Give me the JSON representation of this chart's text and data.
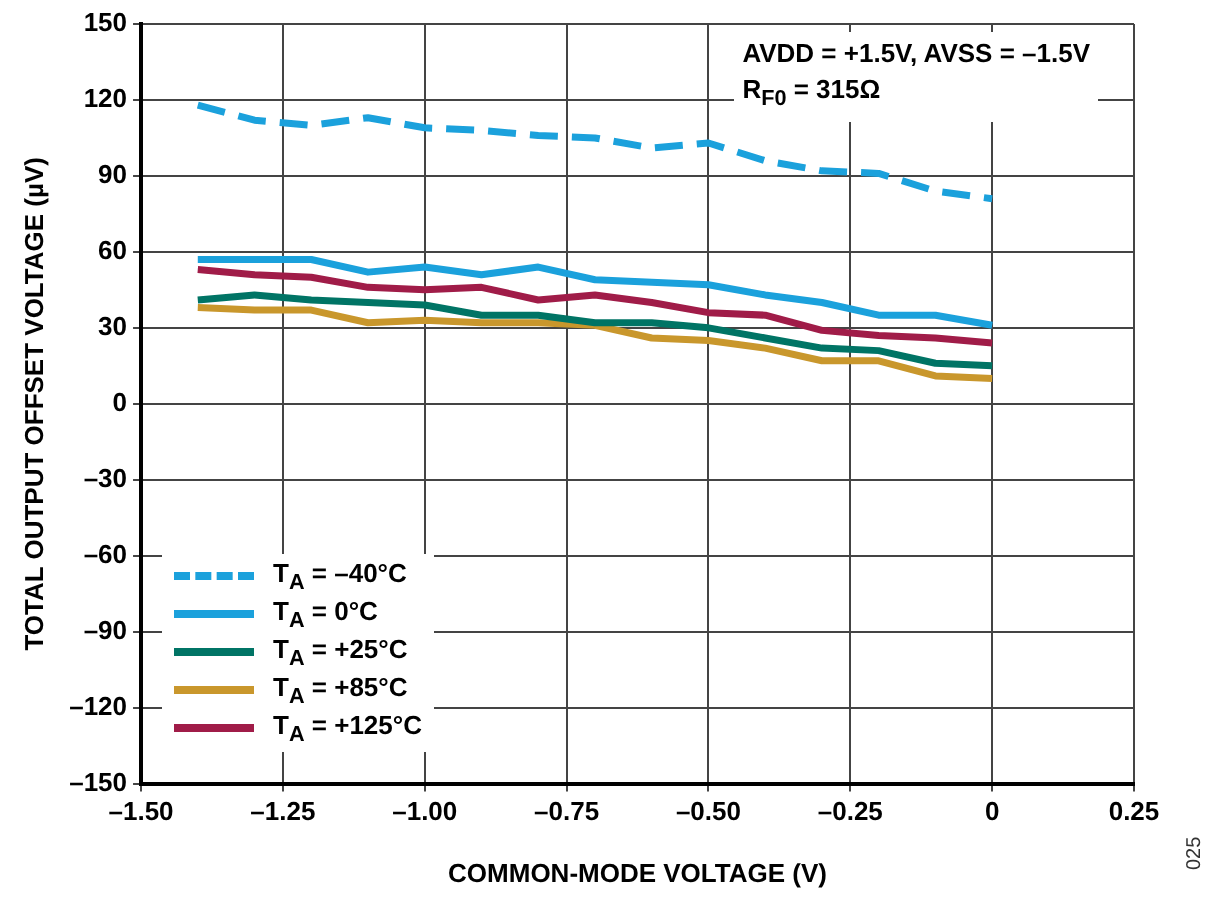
{
  "chart_data": {
    "type": "line",
    "xlabel": "COMMON-MODE VOLTAGE (V)",
    "ylabel": "TOTAL OUTPUT OFFSET VOLTAGE (µV)",
    "annotations": [
      "AVDD = +1.5V, AVSS = –1.5V\nR$_{F0}$ = 315Ω",
      "025"
    ],
    "x": [
      -1.4,
      -1.3,
      -1.2,
      -1.1,
      -1.0,
      -0.9,
      -0.8,
      -0.7,
      -0.6,
      -0.5,
      -0.4,
      -0.3,
      -0.2,
      -0.1,
      0
    ],
    "series": [
      {
        "name": "T$_{A}$ = –40°C",
        "color": "#1ba1dc",
        "line_style": "dashed",
        "values": [
          118,
          112,
          110,
          113,
          109,
          108,
          106,
          105,
          101,
          103,
          96,
          92,
          91,
          84,
          81
        ]
      },
      {
        "name": "T$_{A}$ = 0°C",
        "color": "#1ba1dc",
        "values": [
          57,
          57,
          57,
          52,
          54,
          51,
          54,
          49,
          48,
          47,
          43,
          40,
          35,
          35,
          31
        ]
      },
      {
        "name": "T$_{A}$ = +25°C",
        "color": "#007465",
        "values": [
          41,
          43,
          41,
          40,
          39,
          35,
          35,
          32,
          32,
          30,
          26,
          22,
          21,
          16,
          15
        ]
      },
      {
        "name": "T$_{A}$ = +85°C",
        "color": "#c9972c",
        "values": [
          38,
          37,
          37,
          32,
          33,
          32,
          32,
          31,
          26,
          25,
          22,
          17,
          17,
          11,
          10
        ]
      },
      {
        "name": "T$_{A}$ = +125°C",
        "color": "#a01c48",
        "values": [
          53,
          51,
          50,
          46,
          45,
          46,
          41,
          43,
          40,
          36,
          35,
          29,
          27,
          26,
          24
        ]
      }
    ],
    "xlim": [
      -1.5,
      0.25
    ],
    "xticks": [
      {
        "value": -1.5,
        "label": "–1.50"
      },
      {
        "value": -1.25,
        "label": "–1.25"
      },
      {
        "value": -1,
        "label": "–1.00"
      },
      {
        "value": -0.75,
        "label": "–0.75"
      },
      {
        "value": -0.5,
        "label": "–0.50"
      },
      {
        "value": -0.25,
        "label": "–0.25"
      },
      0,
      {
        "value": 0.25,
        "label": "0.25"
      }
    ],
    "ylim": [
      -150,
      150
    ],
    "yticks": [
      {
        "value": -150,
        "label": "–150"
      },
      {
        "value": -120,
        "label": "–120"
      },
      {
        "value": -90,
        "label": "–90"
      },
      {
        "value": -60,
        "label": "–60"
      },
      {
        "value": -30,
        "label": "–30"
      },
      0,
      30,
      60,
      90,
      120,
      150
    ],
    "grid": true,
    "legend": "bottom left",
    "marker": "none"
  }
}
